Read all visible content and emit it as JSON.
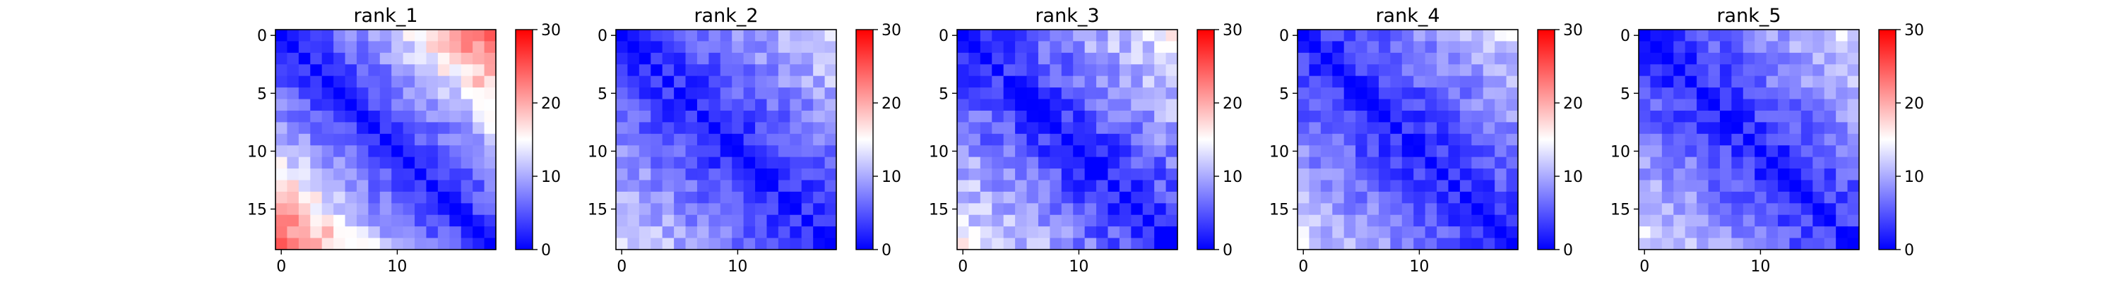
{
  "figure": {
    "background": "#ffffff",
    "colormap": "bwr",
    "colormap_stops": [
      "#0000ff",
      "#ffffff",
      "#ff0000"
    ]
  },
  "chart_data": [
    {
      "type": "heatmap",
      "title": "rank_1",
      "size": 19,
      "x_ticks": [
        0,
        10
      ],
      "y_ticks": [
        0,
        5,
        10,
        15
      ],
      "colorbar": {
        "min": 0,
        "max": 30,
        "ticks": [
          0,
          10,
          20,
          30
        ]
      },
      "off_diagonal_rate": 0.95,
      "corner_shift": 6.0,
      "noise_amplitude": 2.5,
      "seed": 11
    },
    {
      "type": "heatmap",
      "title": "rank_2",
      "size": 19,
      "x_ticks": [
        0,
        10
      ],
      "y_ticks": [
        0,
        5,
        10,
        15
      ],
      "colorbar": {
        "min": 0,
        "max": 30,
        "ticks": [
          0,
          10,
          20,
          30
        ]
      },
      "off_diagonal_rate": 0.62,
      "corner_shift": 0.0,
      "noise_amplitude": 2.5,
      "seed": 23
    },
    {
      "type": "heatmap",
      "title": "rank_3",
      "size": 19,
      "x_ticks": [
        0,
        10
      ],
      "y_ticks": [
        0,
        5,
        10,
        15
      ],
      "colorbar": {
        "min": 0,
        "max": 30,
        "ticks": [
          0,
          10,
          20,
          30
        ]
      },
      "off_diagonal_rate": 0.7,
      "corner_shift": 0.0,
      "noise_amplitude": 3.0,
      "seed": 37
    },
    {
      "type": "heatmap",
      "title": "rank_4",
      "size": 19,
      "x_ticks": [
        0,
        10
      ],
      "y_ticks": [
        0,
        5,
        10,
        15
      ],
      "colorbar": {
        "min": 0,
        "max": 30,
        "ticks": [
          0,
          10,
          20,
          30
        ]
      },
      "off_diagonal_rate": 0.6,
      "corner_shift": 0.0,
      "noise_amplitude": 2.5,
      "seed": 41
    },
    {
      "type": "heatmap",
      "title": "rank_5",
      "size": 19,
      "x_ticks": [
        0,
        10
      ],
      "y_ticks": [
        0,
        5,
        10,
        15
      ],
      "colorbar": {
        "min": 0,
        "max": 30,
        "ticks": [
          0,
          10,
          20,
          30
        ]
      },
      "off_diagonal_rate": 0.65,
      "corner_shift": 0.0,
      "noise_amplitude": 2.8,
      "seed": 53
    }
  ]
}
